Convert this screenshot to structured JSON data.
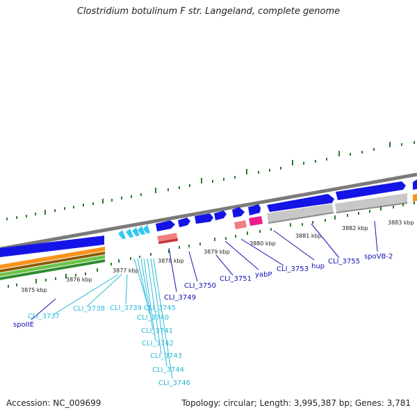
{
  "title": "Clostridium botulinum F str. Langeland, complete genome",
  "footer": {
    "accession": "Accession: NC_009699",
    "topology": "Topology: circular; Length: 3,995,387 bp; Genes: 3,781"
  },
  "colors": {
    "forward_cds": "#1414e6",
    "forward_cds_small": "#33c8f0",
    "reverse_gray": "#c0c0c0",
    "rRNA_pink": "#ef7f80",
    "tRNA_magenta": "#ee1b8d",
    "orange_track": "#f7941d",
    "green_track": "#6cc24a",
    "tick_green": "#2a7d2a"
  },
  "kbp_labels": [
    "3875 kbp",
    "3876 kbp",
    "3877 kbp",
    "3878 kbp",
    "3879 kbp",
    "3880 kbp",
    "3881 kbp",
    "3882 kbp",
    "3883 kbp"
  ],
  "genes_light": [
    "CLI_3737",
    "CLI_3738",
    "CLI_3739",
    "CLI_3745",
    "CLI_3740",
    "CLI_3741",
    "CLI_3742",
    "CLI_3743",
    "CLI_3744",
    "CLI_3746"
  ],
  "genes_dark": [
    "spoIIE",
    "CLI_3749",
    "CLI_3750",
    "CLI_3751",
    "yabP",
    "CLI_3753",
    "hup",
    "CLI_3755",
    "spoVB-2"
  ]
}
